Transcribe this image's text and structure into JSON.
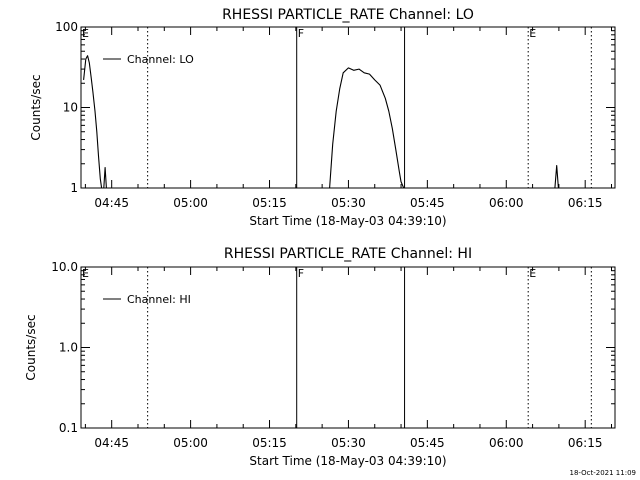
{
  "timestamp": "18-Oct-2021 11:09",
  "chart_data": [
    {
      "type": "line",
      "title": "RHESSI PARTICLE_RATE Channel: LO",
      "xlabel": "Start Time (18-May-03 04:39:10)",
      "ylabel": "Counts/sec",
      "yscale": "log",
      "ylim": [
        1,
        100
      ],
      "xlim": [
        "04:39:10",
        "06:20:40"
      ],
      "x_ticks": [
        "04:45",
        "05:00",
        "05:15",
        "05:30",
        "05:45",
        "06:00",
        "06:15"
      ],
      "y_ticks": [
        "1",
        "10",
        "100"
      ],
      "legend": {
        "label": "Channel: LO",
        "position": "top-left"
      },
      "series": [
        {
          "name": "Channel: LO",
          "color": "#000000",
          "segments": [
            {
              "x": [
                "04:39:40",
                "04:40:05",
                "04:40:25",
                "04:40:45",
                "04:41:05",
                "04:41:25",
                "04:41:50",
                "04:42:10",
                "04:42:30",
                "04:42:50",
                "04:43:05"
              ],
              "y": [
                22,
                40,
                44,
                36,
                24,
                16,
                9,
                5,
                2.5,
                1.3,
                1
              ]
            },
            {
              "x": [
                "04:43:30",
                "04:43:45",
                "04:44:00"
              ],
              "y": [
                1,
                1.8,
                1
              ]
            },
            {
              "x": [
                "05:26:25",
                "05:27:00",
                "05:27:40",
                "05:28:20",
                "05:29:00",
                "05:30:00",
                "05:31:00",
                "05:32:00",
                "05:33:00",
                "05:34:00",
                "05:35:00",
                "05:36:00",
                "05:37:00",
                "05:37:40",
                "05:38:20",
                "05:39:00",
                "05:39:40",
                "05:40:00",
                "05:40:30"
              ],
              "y": [
                1,
                3.5,
                9,
                17,
                27,
                31,
                29,
                30,
                27,
                26,
                22,
                19,
                13,
                9,
                5.5,
                3,
                1.6,
                1.2,
                1
              ]
            },
            {
              "x": [
                "06:09:15",
                "06:09:35",
                "06:09:55"
              ],
              "y": [
                1,
                1.9,
                1
              ]
            }
          ]
        }
      ],
      "annotations": [
        {
          "text": "E",
          "x": "04:39:10",
          "line": "solid"
        },
        {
          "x": "04:51:50",
          "line": "dotted"
        },
        {
          "text": "F",
          "x": "05:20:10",
          "line": "solid"
        },
        {
          "x": "05:40:40",
          "line": "solid"
        },
        {
          "text": "E",
          "x": "06:04:10",
          "line": "dotted"
        },
        {
          "x": "06:16:10",
          "line": "dotted"
        }
      ]
    },
    {
      "type": "line",
      "title": "RHESSI PARTICLE_RATE Channel: HI",
      "xlabel": "Start Time (18-May-03 04:39:10)",
      "ylabel": "Counts/sec",
      "yscale": "log",
      "ylim": [
        0.1,
        10
      ],
      "xlim": [
        "04:39:10",
        "06:20:40"
      ],
      "x_ticks": [
        "04:45",
        "05:00",
        "05:15",
        "05:30",
        "05:45",
        "06:00",
        "06:15"
      ],
      "y_ticks": [
        "0.1",
        "1.0",
        "10.0"
      ],
      "legend": {
        "label": "Channel: HI",
        "position": "top-left"
      },
      "series": [
        {
          "name": "Channel: HI",
          "color": "#000000",
          "segments": []
        }
      ],
      "annotations": [
        {
          "text": "E",
          "x": "04:39:10",
          "line": "solid"
        },
        {
          "x": "04:51:50",
          "line": "dotted"
        },
        {
          "text": "F",
          "x": "05:20:10",
          "line": "solid"
        },
        {
          "x": "05:40:40",
          "line": "solid"
        },
        {
          "text": "E",
          "x": "06:04:10",
          "line": "dotted"
        },
        {
          "x": "06:16:10",
          "line": "dotted"
        }
      ]
    }
  ]
}
